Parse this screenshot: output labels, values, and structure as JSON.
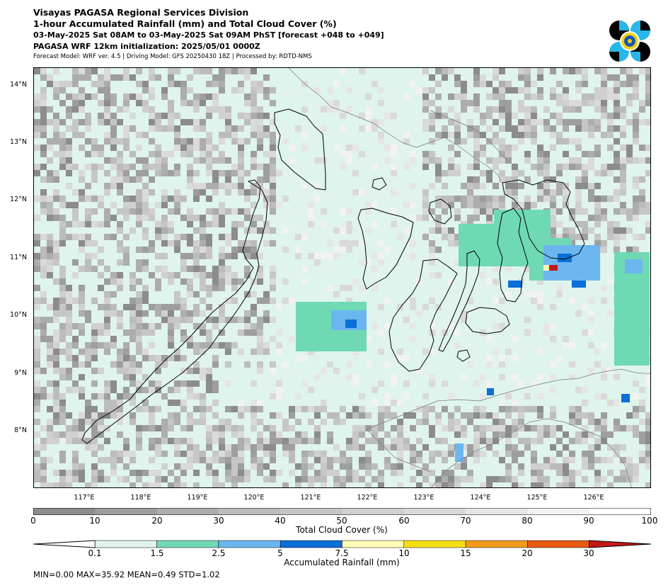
{
  "header": {
    "line1": "Visayas PAGASA Regional Services Division",
    "line2": "1-hour Accumulated Rainfall (mm) and Total Cloud Cover (%)",
    "line3": "03-May-2025 Sat 08AM to 03-May-2025 Sat 09AM PhST [forecast +048 to +049]",
    "line4": "PAGASA WRF 12km initialization: 2025/05/01 0000Z",
    "line5": "Forecast Model: WRF ver. 4.5 | Driving Model: GFS 20250430 18Z | Processed by: RDTD-NMS"
  },
  "map": {
    "lat_labels": [
      "14°N",
      "13°N",
      "12°N",
      "11°N",
      "10°N",
      "9°N",
      "8°N"
    ],
    "lon_labels": [
      "117°E",
      "118°E",
      "119°E",
      "120°E",
      "121°E",
      "122°E",
      "123°E",
      "124°E",
      "125°E",
      "126°E"
    ],
    "lat_range": [
      7.05,
      14.35
    ],
    "lon_range": [
      116.1,
      127.0
    ],
    "ocean_color": "#dff4ec",
    "land_outline_color": "#000000"
  },
  "cloud_colorbar": {
    "label": "Total Cloud Cover (%)",
    "ticks": [
      "0",
      "10",
      "20",
      "30",
      "40",
      "50",
      "60",
      "70",
      "80",
      "90",
      "100"
    ],
    "colors": [
      "#8c8c8c",
      "#9e9e9e",
      "#adadad",
      "#bcbcbc",
      "#c6c6c6",
      "#d0d0d0",
      "#dadada",
      "#e6e6e6",
      "#f2f2f2",
      "#ffffff"
    ]
  },
  "rain_colorbar": {
    "label": "Accumulated Rainfall (mm)",
    "ticks": [
      "0.1",
      "1.5",
      "2.5",
      "5",
      "7.5",
      "10",
      "15",
      "20",
      "30"
    ],
    "colors": [
      "#dff4ec",
      "#6fd9b4",
      "#6cb6f0",
      "#0a6fd6",
      "#fffdb8",
      "#f5dd15",
      "#f29a1a",
      "#e85a12",
      "#c41818"
    ]
  },
  "stats": "MIN=0.00   MAX=35.92   MEAN=0.49   STD=1.02"
}
